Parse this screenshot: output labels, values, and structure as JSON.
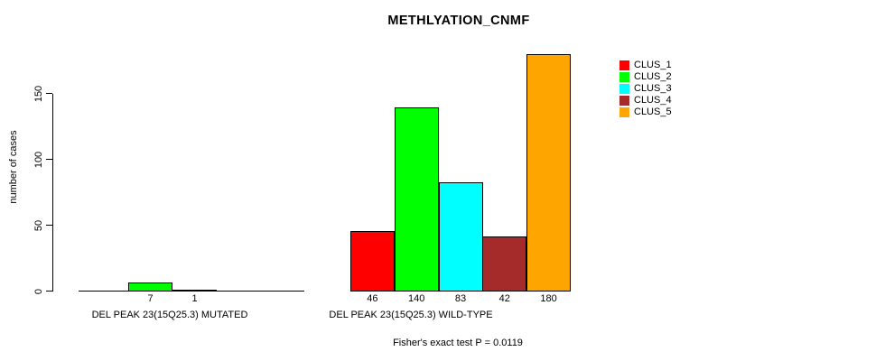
{
  "chart_data": {
    "type": "bar",
    "title": "METHLYATION_CNMF",
    "ylabel": "number of cases",
    "ylim": [
      0,
      180
    ],
    "yticks": [
      0,
      50,
      100,
      150
    ],
    "grid": false,
    "legend_position": "right",
    "categories": [
      "DEL PEAK 23(15Q25.3) MUTATED",
      "DEL PEAK 23(15Q25.3) WILD-TYPE"
    ],
    "series": [
      {
        "name": "CLUS_1",
        "color": "#FF0000",
        "values": [
          0,
          46
        ]
      },
      {
        "name": "CLUS_2",
        "color": "#00FF00",
        "values": [
          7,
          140
        ]
      },
      {
        "name": "CLUS_3",
        "color": "#00FFFF",
        "values": [
          1,
          83
        ]
      },
      {
        "name": "CLUS_4",
        "color": "#A52A2A",
        "values": [
          0,
          42
        ]
      },
      {
        "name": "CLUS_5",
        "color": "#FFA500",
        "values": [
          0,
          180
        ]
      }
    ],
    "bar_value_labels": [
      [
        "",
        "7",
        "1",
        "",
        ""
      ],
      [
        "46",
        "140",
        "83",
        "42",
        "180"
      ]
    ],
    "annotation": "Fisher's exact test P = 0.0119"
  }
}
